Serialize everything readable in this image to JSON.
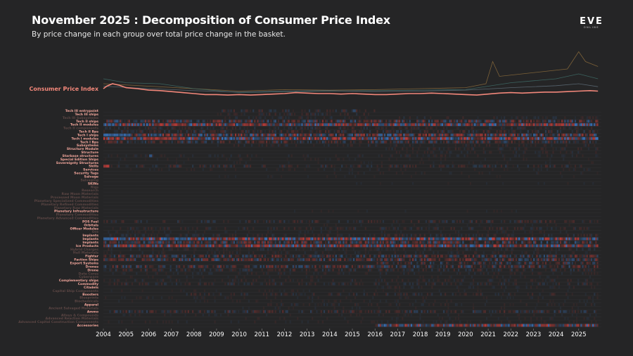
{
  "header": {
    "title": "November 2025 : Decomposition of Consumer Price Index",
    "subtitle": "By price change in each group over total price change in the basket."
  },
  "logo": {
    "text": "EVE",
    "subtext": "ONLINE"
  },
  "colors": {
    "background": "#252526",
    "cpi_line": "#f2877a",
    "increase": "#d0403c",
    "decrease": "#3d7fd1",
    "label_bright": "#f4a79c",
    "label_dim": "#5c4644",
    "row_line": "#303033"
  },
  "chart_data": {
    "type": "heatmap",
    "title": "November 2025 : Decomposition of Consumer Price Index",
    "subtitle": "By price change in each group over total price change in the basket.",
    "x_range": [
      2004,
      2026
    ],
    "years": [
      "2004",
      "2005",
      "2006",
      "2007",
      "2008",
      "2009",
      "2010",
      "2011",
      "2012",
      "2013",
      "2014",
      "2015",
      "2016",
      "2017",
      "2018",
      "2019",
      "2020",
      "2021",
      "2022",
      "2023",
      "2024",
      "2025"
    ],
    "cpi_label": "Consumer Price Index",
    "cpi_series": [
      [
        2004.0,
        1.0
      ],
      [
        2004.15,
        1.05
      ],
      [
        2004.4,
        1.1
      ],
      [
        2004.7,
        1.07
      ],
      [
        2005.0,
        1.02
      ],
      [
        2005.5,
        1.0
      ],
      [
        2006.0,
        0.97
      ],
      [
        2006.5,
        0.96
      ],
      [
        2007.0,
        0.94
      ],
      [
        2007.5,
        0.92
      ],
      [
        2008.0,
        0.9
      ],
      [
        2008.5,
        0.88
      ],
      [
        2009.0,
        0.88
      ],
      [
        2009.5,
        0.87
      ],
      [
        2010.0,
        0.88
      ],
      [
        2010.5,
        0.87
      ],
      [
        2011.0,
        0.88
      ],
      [
        2011.5,
        0.89
      ],
      [
        2012.0,
        0.9
      ],
      [
        2012.5,
        0.92
      ],
      [
        2013.0,
        0.91
      ],
      [
        2013.5,
        0.9
      ],
      [
        2014.0,
        0.9
      ],
      [
        2014.5,
        0.89
      ],
      [
        2015.0,
        0.9
      ],
      [
        2015.5,
        0.89
      ],
      [
        2016.0,
        0.88
      ],
      [
        2016.5,
        0.88
      ],
      [
        2017.0,
        0.89
      ],
      [
        2017.5,
        0.9
      ],
      [
        2018.0,
        0.9
      ],
      [
        2018.5,
        0.91
      ],
      [
        2019.0,
        0.9
      ],
      [
        2019.5,
        0.89
      ],
      [
        2020.0,
        0.88
      ],
      [
        2020.5,
        0.87
      ],
      [
        2021.0,
        0.89
      ],
      [
        2021.5,
        0.91
      ],
      [
        2022.0,
        0.92
      ],
      [
        2022.5,
        0.91
      ],
      [
        2023.0,
        0.92
      ],
      [
        2023.5,
        0.93
      ],
      [
        2024.0,
        0.93
      ],
      [
        2024.5,
        0.94
      ],
      [
        2025.0,
        0.95
      ],
      [
        2025.5,
        0.96
      ],
      [
        2025.85,
        0.95
      ]
    ],
    "background_series": [
      {
        "name": "group-a",
        "color": "#8c6c3c",
        "points": [
          [
            2004,
            1.1
          ],
          [
            2006,
            1.05
          ],
          [
            2008,
            1.0
          ],
          [
            2010,
            0.95
          ],
          [
            2012,
            0.98
          ],
          [
            2014,
            0.97
          ],
          [
            2016,
            0.98
          ],
          [
            2018,
            1.0
          ],
          [
            2020,
            1.02
          ],
          [
            2020.9,
            1.1
          ],
          [
            2021.2,
            1.55
          ],
          [
            2021.5,
            1.25
          ],
          [
            2022.5,
            1.3
          ],
          [
            2023.5,
            1.35
          ],
          [
            2024.5,
            1.4
          ],
          [
            2025.0,
            1.75
          ],
          [
            2025.3,
            1.55
          ],
          [
            2025.85,
            1.45
          ]
        ]
      },
      {
        "name": "group-b",
        "color": "#3f6e6a",
        "points": [
          [
            2004,
            1.2
          ],
          [
            2005,
            1.12
          ],
          [
            2006.5,
            1.1
          ],
          [
            2008,
            1.0
          ],
          [
            2010,
            0.92
          ],
          [
            2012,
            0.94
          ],
          [
            2014,
            0.95
          ],
          [
            2016,
            0.96
          ],
          [
            2018,
            0.97
          ],
          [
            2020,
            0.98
          ],
          [
            2022,
            1.12
          ],
          [
            2023,
            1.16
          ],
          [
            2024,
            1.2
          ],
          [
            2025,
            1.3
          ],
          [
            2025.85,
            1.2
          ]
        ]
      },
      {
        "name": "group-c",
        "color": "#5f6f7a",
        "points": [
          [
            2004,
            1.05
          ],
          [
            2006,
            1.0
          ],
          [
            2008,
            0.96
          ],
          [
            2010,
            0.93
          ],
          [
            2012,
            0.95
          ],
          [
            2014,
            0.96
          ],
          [
            2016,
            0.94
          ],
          [
            2018,
            0.95
          ],
          [
            2020,
            0.97
          ],
          [
            2022,
            1.02
          ],
          [
            2024,
            1.06
          ],
          [
            2025,
            1.1
          ],
          [
            2025.85,
            1.04
          ]
        ]
      }
    ],
    "rows": [
      {
        "label": "Tech III entrypoint",
        "bright": true,
        "pattern": [
          [
            2009,
            2016,
            0.15
          ],
          [
            2015.0,
            2015.1,
            -0.8
          ]
        ]
      },
      {
        "label": "Tech III ships",
        "bright": true,
        "pattern": [
          [
            2009,
            2016,
            0.12
          ]
        ]
      },
      {
        "label": "Tech III Subsystems",
        "bright": false,
        "pattern": [
          [
            2009,
            2025.85,
            0.1
          ]
        ]
      },
      {
        "label": "Tech II ships",
        "bright": true,
        "pattern": [
          [
            2004,
            2025.85,
            0.35
          ]
        ]
      },
      {
        "label": "Tech II modules",
        "bright": true,
        "pattern": [
          [
            2004,
            2025.85,
            0.55
          ],
          [
            2007,
            2007.6,
            0.85
          ]
        ]
      },
      {
        "label": "Tech II components",
        "bright": false,
        "pattern": [
          [
            2004,
            2025.85,
            0.12
          ]
        ]
      },
      {
        "label": "Tech II Bps",
        "bright": true,
        "pattern": [
          [
            2004,
            2025.85,
            0.18
          ]
        ]
      },
      {
        "label": "Tech I ships",
        "bright": true,
        "pattern": [
          [
            2004,
            2025.85,
            0.45
          ],
          [
            2004,
            2005.2,
            -0.85
          ]
        ]
      },
      {
        "label": "Tech I modules",
        "bright": true,
        "pattern": [
          [
            2004,
            2025.85,
            0.6
          ],
          [
            2005.8,
            2006.8,
            0.9
          ]
        ]
      },
      {
        "label": "Tech I Bps",
        "bright": true,
        "pattern": [
          [
            2004,
            2025.85,
            0.25
          ]
        ]
      },
      {
        "label": "Subsystems",
        "bright": true,
        "pattern": [
          [
            2009,
            2025.85,
            0.1
          ]
        ]
      },
      {
        "label": "Structure Module",
        "bright": true,
        "pattern": [
          [
            2016,
            2025.85,
            0.1
          ]
        ]
      },
      {
        "label": "Structure",
        "bright": true,
        "pattern": [
          [
            2016,
            2025.85,
            0.08
          ]
        ]
      },
      {
        "label": "Starbase structures",
        "bright": true,
        "pattern": [
          [
            2004,
            2025.85,
            0.08
          ],
          [
            2006,
            2006.15,
            -0.9
          ]
        ]
      },
      {
        "label": "Special Edition Ships",
        "bright": true,
        "pattern": [
          [
            2004,
            2025.85,
            0.06
          ]
        ]
      },
      {
        "label": "Sovereignty Structures",
        "bright": true,
        "pattern": [
          [
            2004,
            2025.85,
            0.05
          ]
        ]
      },
      {
        "label": "Skills",
        "bright": true,
        "pattern": [
          [
            2004,
            2025.85,
            0.15
          ],
          [
            2004,
            2004.2,
            0.9
          ]
        ]
      },
      {
        "label": "Services",
        "bright": true,
        "pattern": [
          [
            2004,
            2025.85,
            0.06
          ]
        ]
      },
      {
        "label": "Security Tags",
        "bright": true,
        "pattern": [
          [
            2014,
            2025.85,
            0.06
          ]
        ]
      },
      {
        "label": "Salvage",
        "bright": true,
        "pattern": [
          [
            2008,
            2025.85,
            0.05
          ]
        ]
      },
      {
        "label": "Salvaging",
        "bright": false,
        "pattern": [
          [
            2008,
            2025.85,
            0.04
          ]
        ]
      },
      {
        "label": "SKINs",
        "bright": true,
        "pattern": [
          [
            2015,
            2025.85,
            0.05
          ]
        ]
      },
      {
        "label": "Rigs",
        "bright": false,
        "pattern": [
          [
            2008,
            2025.85,
            0.04
          ]
        ]
      },
      {
        "label": "Research",
        "bright": false,
        "pattern": [
          [
            2004,
            2025.85,
            0.04
          ]
        ]
      },
      {
        "label": "Raw Moon Materials",
        "bright": false,
        "pattern": [
          [
            2004,
            2025.85,
            0.04
          ]
        ]
      },
      {
        "label": "Processed Moon Materials",
        "bright": false,
        "pattern": [
          [
            2004,
            2025.85,
            0.04
          ]
        ]
      },
      {
        "label": "Planetary Specialized Commodities",
        "bright": false,
        "pattern": [
          [
            2011,
            2025.85,
            0.04
          ]
        ]
      },
      {
        "label": "Planetary Refined Commodities",
        "bright": false,
        "pattern": [
          [
            2011,
            2025.85,
            0.04
          ]
        ]
      },
      {
        "label": "Planetary Raw Materials",
        "bright": false,
        "pattern": [
          [
            2011,
            2025.85,
            0.04
          ]
        ]
      },
      {
        "label": "Planetary Infrastructure",
        "bright": true,
        "pattern": [
          [
            2011,
            2025.85,
            0.05
          ]
        ]
      },
      {
        "label": "Planetary Commodities",
        "bright": false,
        "pattern": [
          [
            2011,
            2025.85,
            0.04
          ]
        ]
      },
      {
        "label": "Planetary Advanced Commodities",
        "bright": false,
        "pattern": [
          [
            2011,
            2025.85,
            0.04
          ]
        ]
      },
      {
        "label": "POS Fuel",
        "bright": true,
        "pattern": [
          [
            2004,
            2025.85,
            0.15
          ]
        ]
      },
      {
        "label": "Orbitals",
        "bright": true,
        "pattern": [
          [
            2011,
            2025.85,
            0.05
          ]
        ]
      },
      {
        "label": "Officer Modules",
        "bright": true,
        "pattern": [
          [
            2004,
            2025.85,
            0.12
          ]
        ]
      },
      {
        "label": "Ore",
        "bright": false,
        "pattern": [
          [
            2004,
            2025.85,
            0.06
          ]
        ]
      },
      {
        "label": "Implants",
        "bright": true,
        "pattern": [
          [
            2004,
            2025.85,
            0.12
          ]
        ]
      },
      {
        "label": "Implants",
        "bright": true,
        "pattern": [
          [
            2004,
            2025.85,
            0.6
          ],
          [
            2004,
            2004.3,
            -0.9
          ]
        ]
      },
      {
        "label": "Implants",
        "bright": true,
        "pattern": [
          [
            2004,
            2025.85,
            0.35
          ]
        ]
      },
      {
        "label": "Ice Products",
        "bright": true,
        "pattern": [
          [
            2004,
            2025.85,
            0.55
          ]
        ]
      },
      {
        "label": "Hybrid Charges",
        "bright": false,
        "pattern": [
          [
            2004,
            2025.85,
            0.1
          ]
        ]
      },
      {
        "label": "Hull Materials",
        "bright": false,
        "pattern": [
          [
            2004,
            2025.85,
            0.08
          ]
        ]
      },
      {
        "label": "Fighter",
        "bright": true,
        "pattern": [
          [
            2004,
            2025.85,
            0.3
          ]
        ]
      },
      {
        "label": "Faction Ships",
        "bright": true,
        "pattern": [
          [
            2004,
            2025.85,
            0.35
          ]
        ]
      },
      {
        "label": "Export Systems",
        "bright": true,
        "pattern": [
          [
            2016,
            2025.85,
            0.25
          ]
        ]
      },
      {
        "label": "Drones",
        "bright": true,
        "pattern": [
          [
            2004,
            2025.85,
            0.3
          ]
        ]
      },
      {
        "label": "Drone",
        "bright": true,
        "pattern": [
          [
            2004,
            2025.85,
            0.15
          ]
        ]
      },
      {
        "label": "Data Cores",
        "bright": false,
        "pattern": [
          [
            2004,
            2025.85,
            0.08
          ]
        ]
      },
      {
        "label": "Cyberware",
        "bright": false,
        "pattern": [
          [
            2004,
            2025.85,
            0.06
          ]
        ]
      },
      {
        "label": "Complementary ships",
        "bright": true,
        "pattern": [
          [
            2004,
            2025.85,
            0.1
          ]
        ]
      },
      {
        "label": "Commodity",
        "bright": true,
        "pattern": [
          [
            2004,
            2025.85,
            0.12
          ]
        ]
      },
      {
        "label": "Citadels",
        "bright": true,
        "pattern": [
          [
            2016,
            2025.85,
            0.08
          ]
        ]
      },
      {
        "label": "Capital Ship Components",
        "bright": false,
        "pattern": [
          [
            2004,
            2025.85,
            0.06
          ]
        ]
      },
      {
        "label": "Boosters",
        "bright": true,
        "pattern": [
          [
            2007,
            2025.85,
            0.12
          ]
        ]
      },
      {
        "label": "Blueprints",
        "bright": false,
        "pattern": [
          [
            2004,
            2025.85,
            0.06
          ]
        ]
      },
      {
        "label": "Biochemicals",
        "bright": false,
        "pattern": [
          [
            2004,
            2025.85,
            0.06
          ]
        ]
      },
      {
        "label": "Apparel",
        "bright": true,
        "pattern": [
          [
            2011,
            2025.85,
            0.08
          ]
        ]
      },
      {
        "label": "Ancient Salvaged Materials",
        "bright": false,
        "pattern": [
          [
            2010,
            2025.85,
            0.06
          ]
        ]
      },
      {
        "label": "Ammo",
        "bright": true,
        "pattern": [
          [
            2004,
            2025.85,
            0.2
          ]
        ]
      },
      {
        "label": "Alloys & Compounds",
        "bright": false,
        "pattern": [
          [
            2004,
            2025.85,
            0.06
          ]
        ]
      },
      {
        "label": "Advanced Reaction Materials",
        "bright": false,
        "pattern": [
          [
            2010,
            2025.85,
            0.06
          ]
        ]
      },
      {
        "label": "Advanced Capital Construction Components",
        "bright": false,
        "pattern": [
          [
            2004,
            2025.85,
            0.06
          ]
        ]
      },
      {
        "label": "Accessories",
        "bright": true,
        "pattern": [
          [
            2016,
            2025.85,
            0.55
          ]
        ]
      }
    ]
  }
}
